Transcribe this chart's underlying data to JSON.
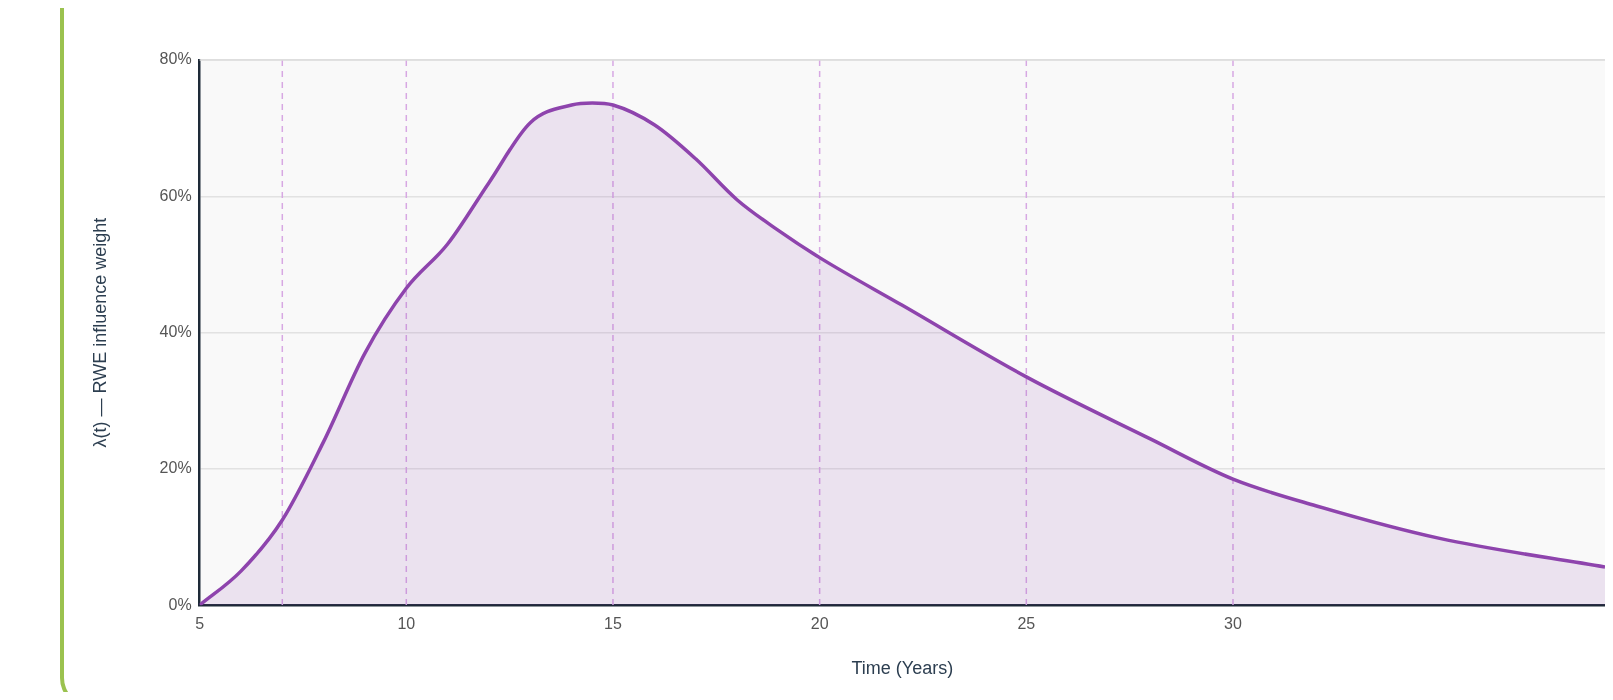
{
  "chart_data": {
    "type": "area",
    "xlabel": "Time (Years)",
    "ylabel": "λ(t) — RWE influence weight",
    "x": [
      5,
      6,
      7,
      8,
      9,
      10,
      11,
      12,
      13,
      14,
      14.5,
      15,
      16,
      17,
      18,
      19,
      20,
      22,
      25,
      28,
      30,
      32,
      35,
      39
    ],
    "series": [
      {
        "color": "#8e44ad",
        "values": [
          0,
          5,
          12.5,
          24,
          37,
          46.5,
          53,
          62,
          70.8,
          73.4,
          73.7,
          73.4,
          70.5,
          65.5,
          59.5,
          55,
          51,
          44,
          33.5,
          24.4,
          18.5,
          14.6,
          9.8,
          5.6
        ]
      }
    ],
    "xlim": [
      5,
      39
    ],
    "xticks": [
      5,
      10,
      15,
      20,
      25,
      30
    ],
    "ylim": [
      0,
      80
    ],
    "yticks": [
      {
        "value": 0,
        "label": "0%"
      },
      {
        "value": 20,
        "label": "20%"
      },
      {
        "value": 40,
        "label": "40%"
      },
      {
        "value": 60,
        "label": "60%"
      },
      {
        "value": 80,
        "label": "80%"
      }
    ],
    "grid": "y",
    "legend": false,
    "marker": "none",
    "line_style": "solid",
    "ref_lines": [
      {
        "axis": "x",
        "value": 7,
        "color": "#d7a8e3",
        "line_style": "dashed"
      },
      {
        "axis": "x",
        "value": 10,
        "color": "#d7a8e3",
        "line_style": "dashed"
      },
      {
        "axis": "x",
        "value": 15,
        "color": "#d7a8e3",
        "line_style": "dashed"
      },
      {
        "axis": "x",
        "value": 20,
        "color": "#d7a8e3",
        "line_style": "dashed"
      },
      {
        "axis": "x",
        "value": 25,
        "color": "#d7a8e3",
        "line_style": "dashed"
      },
      {
        "axis": "x",
        "value": 30,
        "color": "#d7a8e3",
        "line_style": "dashed"
      }
    ]
  }
}
